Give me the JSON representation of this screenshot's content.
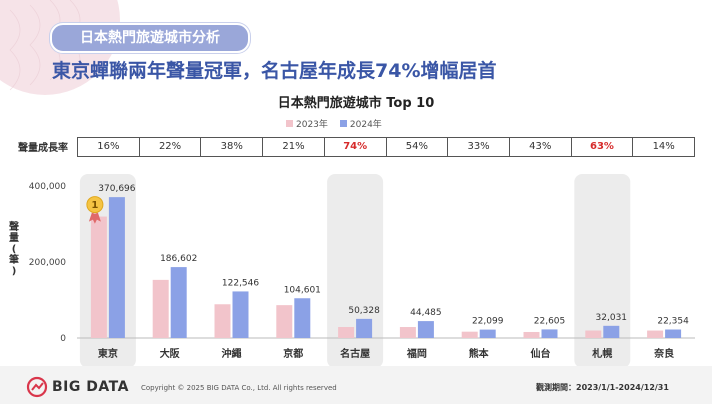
{
  "header": {
    "section_title": "日本熱門旅遊城市分析",
    "headline": "東京蟬聯兩年聲量冠軍，名古屋年成長74%增幅居首"
  },
  "chart_data": {
    "type": "bar",
    "title": "日本熱門旅遊城市 Top 10",
    "ylabel": "聲量(筆)",
    "xlabel": "",
    "categories": [
      "東京",
      "大阪",
      "沖繩",
      "京都",
      "名古屋",
      "福岡",
      "熊本",
      "仙台",
      "札幌",
      "奈良"
    ],
    "series": [
      {
        "name": "2023年",
        "color": "#f2c4cb",
        "values": [
          319566,
          152952,
          88802,
          86447,
          28924,
          28886,
          16611,
          15808,
          19651,
          19609
        ]
      },
      {
        "name": "2024年",
        "color": "#8ba1e6",
        "values": [
          370696,
          186602,
          122546,
          104601,
          50328,
          44485,
          22099,
          22605,
          32031,
          22354
        ]
      }
    ],
    "value_labels": [
      "370,696",
      "186,602",
      "122,546",
      "104,601",
      "50,328",
      "44,485",
      "22,099",
      "22,605",
      "32,031",
      "22,354"
    ],
    "ylim": [
      0,
      400000
    ],
    "yticks": [
      0,
      200000,
      400000
    ],
    "ytick_labels": [
      "0",
      "200,000",
      "400,000"
    ],
    "grid": false,
    "legend_position": "top-center",
    "highlighted_categories": [
      "東京",
      "名古屋",
      "札幌"
    ],
    "rank_badge": "1"
  },
  "growth": {
    "label": "聲量成長率",
    "values": [
      "16%",
      "22%",
      "38%",
      "21%",
      "74%",
      "54%",
      "33%",
      "43%",
      "63%",
      "14%"
    ],
    "highlighted": [
      "74%",
      "63%"
    ]
  },
  "footer": {
    "brand": "BIG DATA",
    "copyright": "Copyright © 2025 BIG DATA Co., Ltd. All rights reserved",
    "period": "觀測期間：2023/1/1-2024/12/31"
  }
}
